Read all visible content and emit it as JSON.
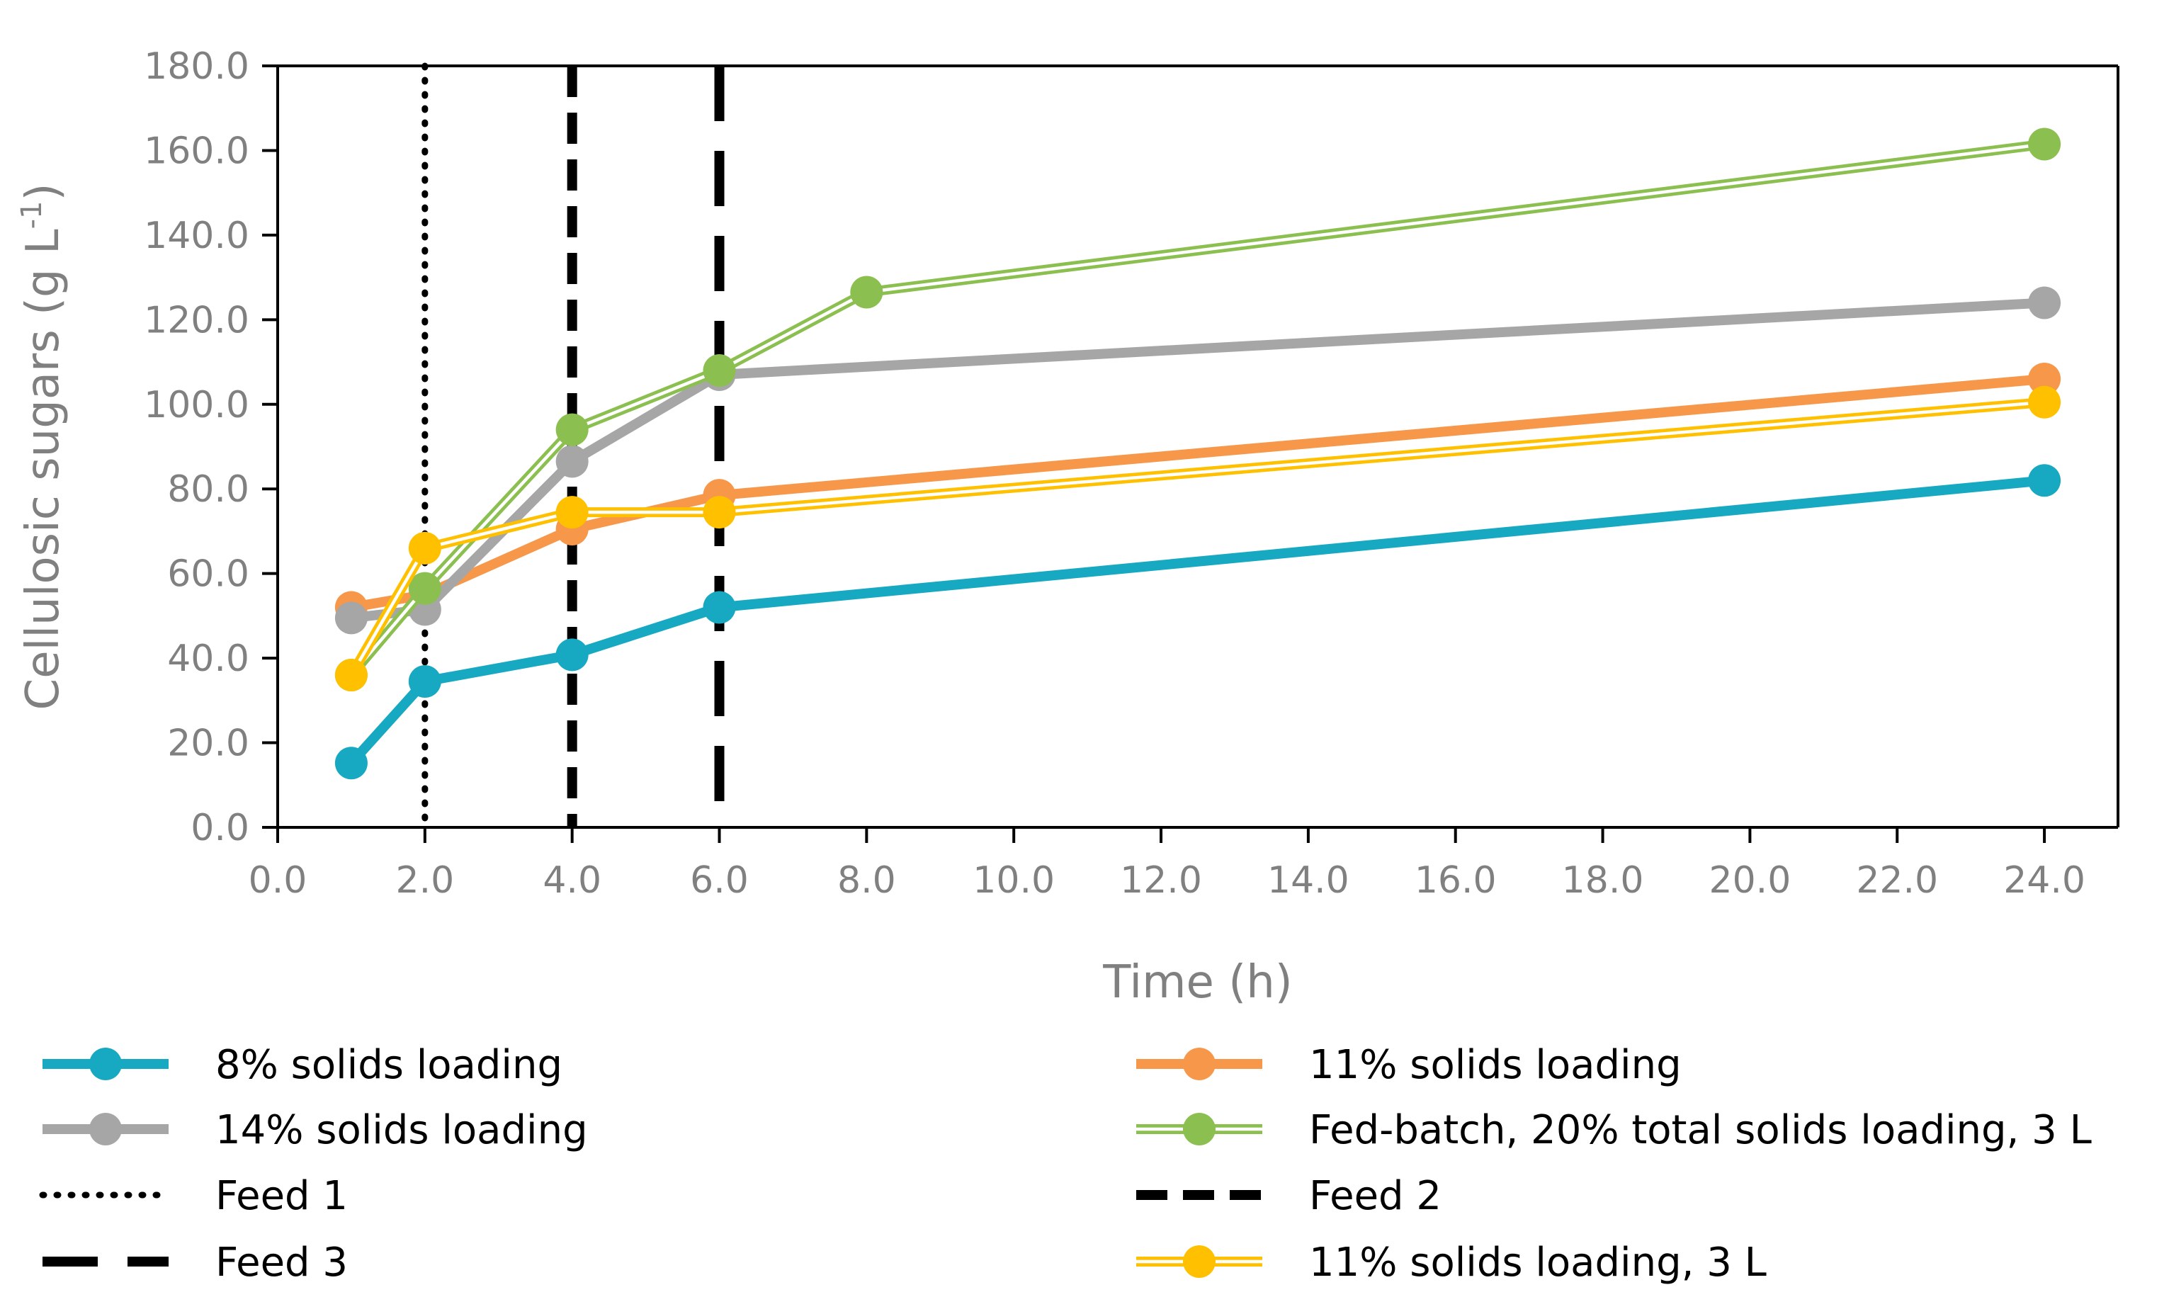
{
  "chart_data": {
    "type": "line",
    "title": "",
    "xlabel": "Time (h)",
    "ylabel": "Cellulosic sugars (g L",
    "ylabel_sup": "-1",
    "ylabel_close": ")",
    "xlim": [
      0,
      25
    ],
    "ylim": [
      0,
      180
    ],
    "x_ticks": [
      0,
      2,
      4,
      6,
      8,
      10,
      12,
      14,
      16,
      18,
      20,
      22,
      24
    ],
    "x_tick_labels": [
      "0.0",
      "2.0",
      "4.0",
      "6.0",
      "8.0",
      "10.0",
      "12.0",
      "14.0",
      "16.0",
      "18.0",
      "20.0",
      "22.0",
      "24.0"
    ],
    "y_ticks": [
      0,
      20,
      40,
      60,
      80,
      100,
      120,
      140,
      160,
      180
    ],
    "y_tick_labels": [
      "0.0",
      "20.0",
      "40.0",
      "60.0",
      "80.0",
      "100.0",
      "120.0",
      "140.0",
      "160.0",
      "180.0"
    ],
    "grid": false,
    "legend_position": "bottom",
    "series": [
      {
        "name": "8% solids loading",
        "key": "s8",
        "color": "#17A9C2",
        "style": "thick",
        "x": [
          1,
          2,
          4,
          6,
          24
        ],
        "values": [
          15.2,
          34.5,
          40.8,
          52.0,
          82.0
        ]
      },
      {
        "name": "11% solids loading",
        "key": "s11",
        "color": "#F7974A",
        "style": "thick",
        "x": [
          1,
          2,
          4,
          6,
          24
        ],
        "values": [
          52.0,
          55.0,
          70.5,
          78.5,
          106.0
        ]
      },
      {
        "name": "14% solids loading",
        "key": "s14",
        "color": "#A6A6A6",
        "style": "thick",
        "x": [
          1,
          2,
          4,
          6,
          24
        ],
        "values": [
          49.5,
          51.5,
          86.5,
          107.0,
          124.0
        ]
      },
      {
        "name": "Fed-batch, 20% total solids loading, 3 L",
        "key": "fb",
        "color": "#8BBF4F",
        "style": "double",
        "x": [
          1,
          2,
          4,
          6,
          8,
          24
        ],
        "values": [
          36.0,
          56.5,
          94.0,
          108.0,
          126.5,
          161.5
        ]
      },
      {
        "name": "11% solids loading, 3 L",
        "key": "s11_3l",
        "color": "#FFC000",
        "style": "double",
        "x": [
          1,
          2,
          4,
          6,
          24
        ],
        "values": [
          36.0,
          66.0,
          74.5,
          74.5,
          100.5
        ]
      }
    ],
    "vlines": [
      {
        "name": "Feed 1",
        "key": "feed1",
        "x": 2,
        "style": "dotted",
        "color": "#000000"
      },
      {
        "name": "Feed 2",
        "key": "feed2",
        "x": 4,
        "style": "dashed",
        "color": "#000000"
      },
      {
        "name": "Feed 3",
        "key": "feed3",
        "x": 6,
        "style": "longdash",
        "color": "#000000"
      }
    ],
    "legend_order": [
      "s8",
      "s11",
      "s14",
      "fb",
      "feed1",
      "feed2",
      "feed3",
      "s11_3l"
    ]
  }
}
